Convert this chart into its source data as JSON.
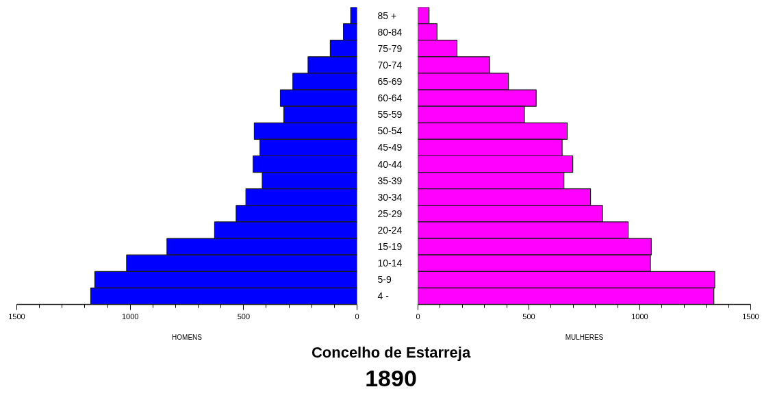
{
  "chart_data": [
    {
      "type": "bar",
      "orientation": "horizontal",
      "title": "Concelho de Estarreja",
      "subtitle": "1890",
      "xlabel": "HOMENS",
      "categories": [
        "85 +",
        "80-84",
        "75-79",
        "70-74",
        "65-69",
        "60-64",
        "55-59",
        "50-54",
        "45-49",
        "40-44",
        "35-39",
        "30-34",
        "25-29",
        "20-24",
        "15-19",
        "10-14",
        "5-9",
        "4 -"
      ],
      "values": [
        28,
        60,
        118,
        216,
        283,
        338,
        323,
        453,
        428,
        458,
        418,
        490,
        533,
        628,
        838,
        1016,
        1156,
        1174
      ],
      "color": "#0000ff",
      "xlim": [
        1500,
        0
      ],
      "xticks": [
        1500,
        1000,
        500,
        0
      ],
      "grid": false
    },
    {
      "type": "bar",
      "orientation": "horizontal",
      "xlabel": "MULHERES",
      "categories": [
        null,
        null,
        null,
        null,
        null,
        null,
        null,
        null,
        null,
        null,
        null,
        null,
        null,
        null,
        null,
        null,
        null,
        null
      ],
      "values": [
        50,
        86,
        176,
        323,
        408,
        533,
        480,
        673,
        650,
        698,
        658,
        778,
        832,
        948,
        1052,
        1048,
        1338,
        1334
      ],
      "color": "#ff00ff",
      "xlim": [
        0,
        1500
      ],
      "xticks": [
        0,
        500,
        1000,
        1500
      ],
      "grid": false
    }
  ]
}
